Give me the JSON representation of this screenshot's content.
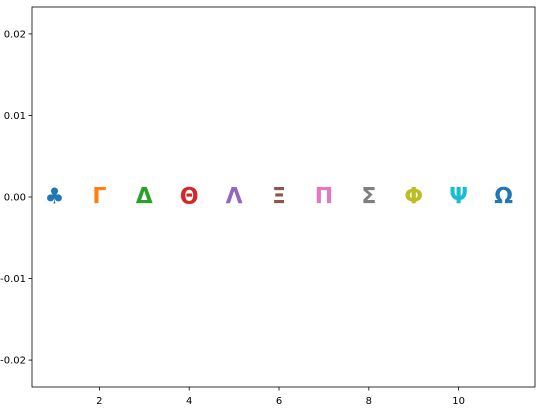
{
  "chart_data": {
    "type": "scatter",
    "title": "",
    "xlabel": "",
    "ylabel": "",
    "xlim": [
      0.5,
      11.7
    ],
    "ylim": [
      -0.0233,
      0.0233
    ],
    "grid": false,
    "legend": "none",
    "x_ticks": [
      2,
      4,
      6,
      8,
      10
    ],
    "y_ticks": [
      -0.02,
      -0.01,
      0.0,
      0.01,
      0.02
    ],
    "x_tick_labels": [
      "2",
      "4",
      "6",
      "8",
      "10"
    ],
    "y_tick_labels": [
      "-0.02",
      "-0.01",
      "0.00",
      "0.01",
      "0.02"
    ],
    "points": [
      {
        "x": 1,
        "y": 0,
        "marker": "♣",
        "color": "#1f77b4"
      },
      {
        "x": 2,
        "y": 0,
        "marker": "Γ",
        "color": "#ff7f0e"
      },
      {
        "x": 3,
        "y": 0,
        "marker": "Δ",
        "color": "#2ca02c"
      },
      {
        "x": 4,
        "y": 0,
        "marker": "Θ",
        "color": "#d62728"
      },
      {
        "x": 5,
        "y": 0,
        "marker": "Λ",
        "color": "#9467bd"
      },
      {
        "x": 6,
        "y": 0,
        "marker": "Ξ",
        "color": "#8c564b"
      },
      {
        "x": 7,
        "y": 0,
        "marker": "Π",
        "color": "#e377c2"
      },
      {
        "x": 8,
        "y": 0,
        "marker": "Σ",
        "color": "#7f7f7f"
      },
      {
        "x": 9,
        "y": 0,
        "marker": "Φ",
        "color": "#bcbd22"
      },
      {
        "x": 10,
        "y": 0,
        "marker": "Ψ",
        "color": "#17becf"
      },
      {
        "x": 11,
        "y": 0,
        "marker": "Ω",
        "color": "#1f77b4"
      }
    ]
  }
}
